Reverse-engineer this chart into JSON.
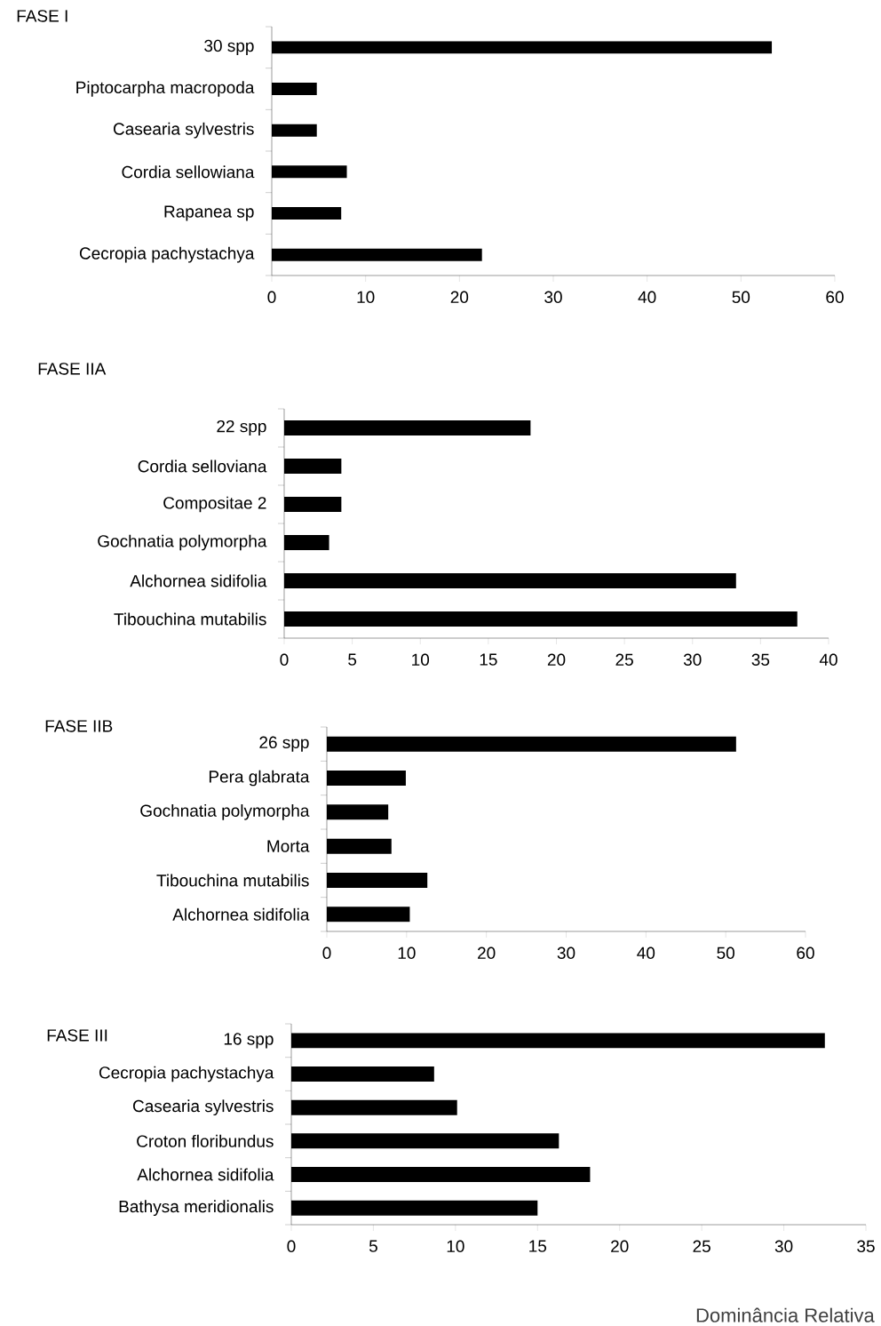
{
  "chart_data": [
    {
      "type": "bar",
      "orientation": "horizontal",
      "title": "FASE I",
      "categories": [
        "30 spp",
        "Piptocarpha macropoda",
        "Casearia sylvestris",
        "Cordia sellowiana",
        "Rapanea sp",
        "Cecropia pachystachya"
      ],
      "values": [
        53.3,
        4.8,
        4.8,
        8.0,
        7.4,
        22.4
      ],
      "color": "#000000",
      "xlim": [
        0,
        60
      ],
      "xticks": [
        0,
        10,
        20,
        30,
        40,
        50,
        60
      ]
    },
    {
      "type": "bar",
      "orientation": "horizontal",
      "title": "FASE IIA",
      "categories": [
        "22 spp",
        "Cordia selloviana",
        "Compositae 2",
        "Gochnatia polymorpha",
        "Alchornea sidifolia",
        "Tibouchina mutabilis"
      ],
      "values": [
        18.1,
        4.2,
        4.2,
        3.3,
        33.2,
        37.7
      ],
      "color": "#000000",
      "xlim": [
        0,
        40
      ],
      "xticks": [
        0,
        5,
        10,
        15,
        20,
        25,
        30,
        35,
        40
      ]
    },
    {
      "type": "bar",
      "orientation": "horizontal",
      "title": "FASE IIB",
      "categories": [
        "26 spp",
        "Pera glabrata",
        "Gochnatia polymorpha",
        "Morta",
        "Tibouchina mutabilis",
        "Alchornea sidifolia"
      ],
      "values": [
        51.3,
        9.9,
        7.7,
        8.1,
        12.6,
        10.4
      ],
      "color": "#000000",
      "xlim": [
        0,
        60
      ],
      "xticks": [
        0,
        10,
        20,
        30,
        40,
        50,
        60
      ]
    },
    {
      "type": "bar",
      "orientation": "horizontal",
      "title": "FASE III",
      "xlabel": "Dominância Relativa",
      "categories": [
        "16 spp",
        "Cecropia pachystachya",
        "Casearia sylvestris",
        "Croton floribundus",
        "Alchornea sidifolia",
        "Bathysa meridionalis"
      ],
      "values": [
        32.5,
        8.7,
        10.1,
        16.3,
        18.2,
        15.0
      ],
      "color": "#000000",
      "xlim": [
        0,
        35
      ],
      "xticks": [
        0,
        5,
        10,
        15,
        20,
        25,
        30,
        35
      ]
    }
  ]
}
